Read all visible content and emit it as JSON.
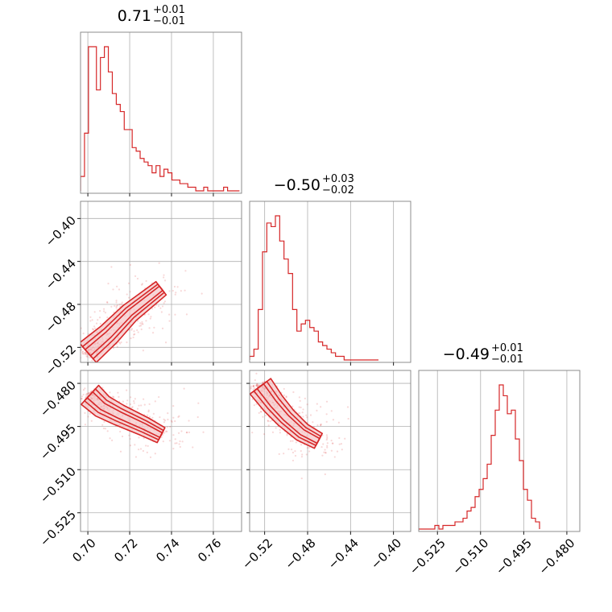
{
  "chart_data": {
    "type": "corner",
    "color": "#d62728",
    "fill_color": "#f4c4c6",
    "grid": true,
    "parameters": [
      {
        "title": {
          "median": "0.71",
          "plus": "+0.01",
          "minus": "−0.01"
        },
        "range": [
          0.6965,
          0.7735
        ],
        "ticks": [
          0.7,
          0.72,
          0.74,
          0.76
        ],
        "tick_labels": [
          "0.70",
          "0.72",
          "0.74",
          "0.76"
        ]
      },
      {
        "title": {
          "median": "−0.50",
          "plus": "+0.03",
          "minus": "−0.02"
        },
        "range": [
          -0.534,
          -0.384
        ],
        "ticks": [
          -0.52,
          -0.48,
          -0.44,
          -0.4
        ],
        "tick_labels": [
          "−0.52",
          "−0.48",
          "−0.44",
          "−0.40"
        ]
      },
      {
        "title": {
          "median": "−0.49",
          "plus": "+0.01",
          "minus": "−0.01"
        },
        "range": [
          -0.5315,
          -0.4755
        ],
        "ticks": [
          -0.525,
          -0.51,
          -0.495,
          -0.48
        ],
        "tick_labels": [
          "−0.525",
          "−0.510",
          "−0.495",
          "−0.480"
        ]
      }
    ],
    "histograms": [
      {
        "parameter": 0,
        "bin_edges_start": 0.6965,
        "bin_width": 0.0019,
        "counts": [
          4,
          16,
          40,
          40,
          28,
          37,
          40,
          33,
          27,
          24,
          22,
          17,
          17,
          12,
          11,
          9,
          8,
          7,
          5,
          7,
          4,
          6,
          5,
          3,
          3,
          2,
          2,
          1,
          1,
          0,
          0,
          1,
          0,
          0,
          0,
          0,
          1,
          0,
          0,
          0
        ]
      },
      {
        "parameter": 1,
        "bin_edges_start": -0.534,
        "bin_width": 0.004,
        "counts": [
          1,
          3,
          14,
          30,
          38,
          37,
          40,
          33,
          28,
          24,
          14,
          8,
          10,
          11,
          9,
          8,
          5,
          4,
          3,
          2,
          1,
          1,
          0,
          0,
          0,
          0,
          0,
          0,
          0,
          0
        ]
      },
      {
        "parameter": 2,
        "bin_edges_start": -0.5315,
        "bin_width": 0.0014,
        "counts": [
          0,
          0,
          0,
          0,
          1,
          0,
          1,
          1,
          1,
          2,
          2,
          3,
          5,
          6,
          9,
          11,
          14,
          18,
          26,
          33,
          40,
          37,
          32,
          33,
          25,
          19,
          11,
          8,
          3,
          2
        ]
      }
    ],
    "pair_cores": [
      {
        "x_param": 0,
        "y_param": 1,
        "points": [
          [
            0.7,
            -0.525
          ],
          [
            0.71,
            -0.508
          ],
          [
            0.72,
            -0.488
          ],
          [
            0.735,
            -0.465
          ]
        ]
      },
      {
        "x_param": 0,
        "y_param": 2,
        "points": [
          [
            0.701,
            -0.484
          ],
          [
            0.707,
            -0.488
          ],
          [
            0.715,
            -0.491
          ],
          [
            0.727,
            -0.495
          ],
          [
            0.735,
            -0.498
          ]
        ]
      },
      {
        "x_param": 1,
        "y_param": 2,
        "points": [
          [
            -0.524,
            -0.481
          ],
          [
            -0.512,
            -0.487
          ],
          [
            -0.5,
            -0.492
          ],
          [
            -0.485,
            -0.497
          ],
          [
            -0.47,
            -0.5
          ]
        ]
      }
    ]
  }
}
